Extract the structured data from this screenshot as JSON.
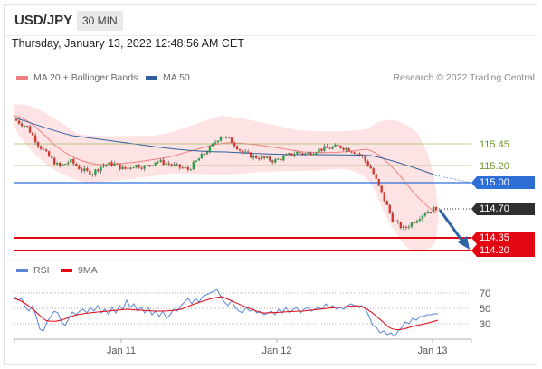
{
  "header": {
    "pair": "USD/JPY",
    "timeframe": "30 MIN"
  },
  "datetime": "Thursday, January 13, 2022 12:48:56 AM CET",
  "legend": {
    "ma20": "MA 20 + Bollinger Bands",
    "ma50": "MA 50",
    "credit": "Research © 2022 Trading Central"
  },
  "rsi_legend": {
    "rsi": "RSI",
    "ma9": "9MA"
  },
  "levels": {
    "r2": "115.45",
    "r1": "115.20",
    "pivot": "115.00",
    "last": "114.70",
    "s1": "114.35",
    "s2": "114.20"
  },
  "rsi_axis": {
    "t70": "70",
    "t50": "50",
    "t30": "30"
  },
  "x_axis": {
    "jan11": "Jan 11",
    "jan12": "Jan 12",
    "jan13": "Jan 13"
  },
  "colors": {
    "resistance": "#8db34a",
    "pivot": "#2e6fd6",
    "support": "#e30613",
    "last": "#2f2f2f",
    "ma20": "#f08080",
    "ma50": "#3060a0",
    "band": "#fbd7d7",
    "up": "#2e9e4a",
    "down": "#d63a2e",
    "rsi": "#5b86d6",
    "rsi_ma": "#e30613",
    "arrow": "#2e63a8"
  },
  "chart_data": {
    "type": "candlestick",
    "y_axis_levels": [
      115.45,
      115.2,
      115.0,
      114.7,
      114.35,
      114.2
    ],
    "close_path": [
      115.72,
      115.65,
      115.45,
      115.3,
      115.18,
      115.25,
      115.15,
      115.1,
      115.2,
      115.22,
      115.15,
      115.2,
      115.18,
      115.25,
      115.22,
      115.18,
      115.15,
      115.28,
      115.4,
      115.55,
      115.48,
      115.35,
      115.3,
      115.28,
      115.25,
      115.3,
      115.35,
      115.33,
      115.38,
      115.4,
      115.42,
      115.38,
      115.32,
      115.15,
      114.85,
      114.55,
      114.45,
      114.55,
      114.65,
      114.7
    ],
    "rsi_reference": [
      70,
      50,
      30
    ]
  }
}
